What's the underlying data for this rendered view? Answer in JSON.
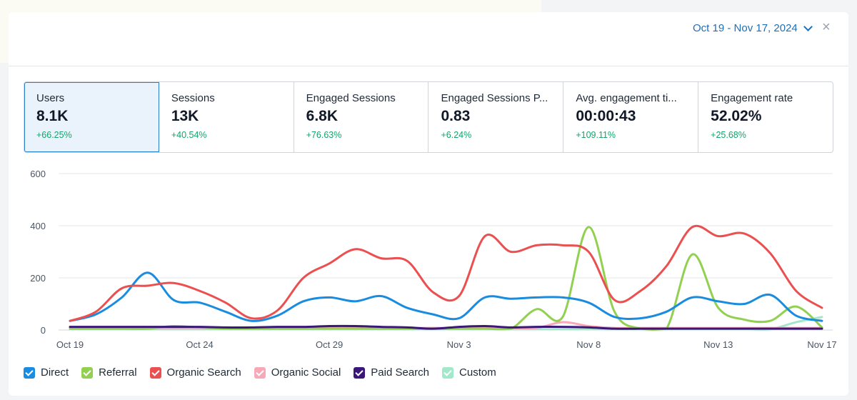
{
  "header": {
    "date_range": "Oct 19 - Nov 17, 2024",
    "close_symbol": "×"
  },
  "metrics": [
    {
      "label": "Users",
      "value": "8.1K",
      "delta": "+66.25%",
      "active": true
    },
    {
      "label": "Sessions",
      "value": "13K",
      "delta": "+40.54%"
    },
    {
      "label": "Engaged Sessions",
      "value": "6.8K",
      "delta": "+76.63%"
    },
    {
      "label": "Engaged Sessions P...",
      "value": "0.83",
      "delta": "+6.24%"
    },
    {
      "label": "Avg. engagement ti...",
      "value": "00:00:43",
      "delta": "+109.11%"
    },
    {
      "label": "Engagement rate",
      "value": "52.02%",
      "delta": "+25.68%"
    }
  ],
  "chart_data": {
    "type": "line",
    "x": [
      "Oct 19",
      "Oct 20",
      "Oct 21",
      "Oct 22",
      "Oct 23",
      "Oct 24",
      "Oct 25",
      "Oct 26",
      "Oct 27",
      "Oct 28",
      "Oct 29",
      "Oct 30",
      "Oct 31",
      "Nov 1",
      "Nov 2",
      "Nov 3",
      "Nov 4",
      "Nov 5",
      "Nov 6",
      "Nov 7",
      "Nov 8",
      "Nov 9",
      "Nov 10",
      "Nov 11",
      "Nov 12",
      "Nov 13",
      "Nov 14",
      "Nov 15",
      "Nov 16",
      "Nov 17"
    ],
    "x_tick_labels": [
      "Oct 19",
      "Oct 24",
      "Oct 29",
      "Nov 3",
      "Nov 8",
      "Nov 13",
      "Nov 17"
    ],
    "x_tick_indices": [
      0,
      5,
      10,
      15,
      20,
      25,
      29
    ],
    "y_ticks": [
      "0",
      "200",
      "400",
      "600"
    ],
    "ylim": [
      0,
      600
    ],
    "grid": true,
    "legend_position": "bottom-left",
    "series": [
      {
        "name": "Direct",
        "color": "#1a8ce0",
        "values": [
          35,
          60,
          125,
          220,
          115,
          105,
          70,
          35,
          55,
          110,
          125,
          110,
          130,
          85,
          60,
          45,
          125,
          120,
          125,
          125,
          105,
          50,
          45,
          70,
          125,
          110,
          100,
          135,
          55,
          35
        ]
      },
      {
        "name": "Referral",
        "color": "#92d050",
        "values": [
          5,
          5,
          5,
          5,
          15,
          10,
          5,
          5,
          5,
          5,
          5,
          5,
          5,
          5,
          5,
          5,
          5,
          5,
          80,
          50,
          395,
          70,
          5,
          5,
          290,
          85,
          40,
          35,
          90,
          10
        ]
      },
      {
        "name": "Organic Search",
        "color": "#ec4f4f",
        "values": [
          35,
          70,
          160,
          170,
          180,
          150,
          105,
          45,
          75,
          200,
          255,
          310,
          275,
          265,
          145,
          130,
          360,
          300,
          325,
          325,
          300,
          115,
          150,
          245,
          395,
          360,
          370,
          295,
          150,
          85
        ]
      },
      {
        "name": "Organic Social",
        "color": "#f9a8b8",
        "values": [
          8,
          8,
          8,
          8,
          8,
          8,
          8,
          8,
          8,
          8,
          8,
          8,
          8,
          8,
          8,
          8,
          8,
          8,
          8,
          30,
          15,
          8,
          8,
          8,
          8,
          8,
          8,
          8,
          8,
          8
        ]
      },
      {
        "name": "Paid Search",
        "color": "#3b1778",
        "values": [
          12,
          12,
          12,
          12,
          12,
          12,
          10,
          10,
          12,
          12,
          15,
          15,
          12,
          10,
          5,
          12,
          15,
          10,
          12,
          12,
          10,
          5,
          5,
          5,
          5,
          5,
          5,
          5,
          5,
          5
        ]
      },
      {
        "name": "Custom",
        "color": "#a4e8cb",
        "values": [
          3,
          3,
          3,
          3,
          3,
          3,
          3,
          3,
          3,
          3,
          3,
          3,
          3,
          3,
          3,
          3,
          3,
          3,
          3,
          3,
          3,
          3,
          3,
          3,
          3,
          3,
          3,
          3,
          30,
          50
        ]
      }
    ]
  },
  "legend": [
    {
      "name": "Direct",
      "color": "#1a8ce0"
    },
    {
      "name": "Referral",
      "color": "#92d050"
    },
    {
      "name": "Organic Search",
      "color": "#ec4f4f"
    },
    {
      "name": "Organic Social",
      "color": "#f9a8b8"
    },
    {
      "name": "Paid Search",
      "color": "#3b1778"
    },
    {
      "name": "Custom",
      "color": "#a4e8cb"
    }
  ]
}
